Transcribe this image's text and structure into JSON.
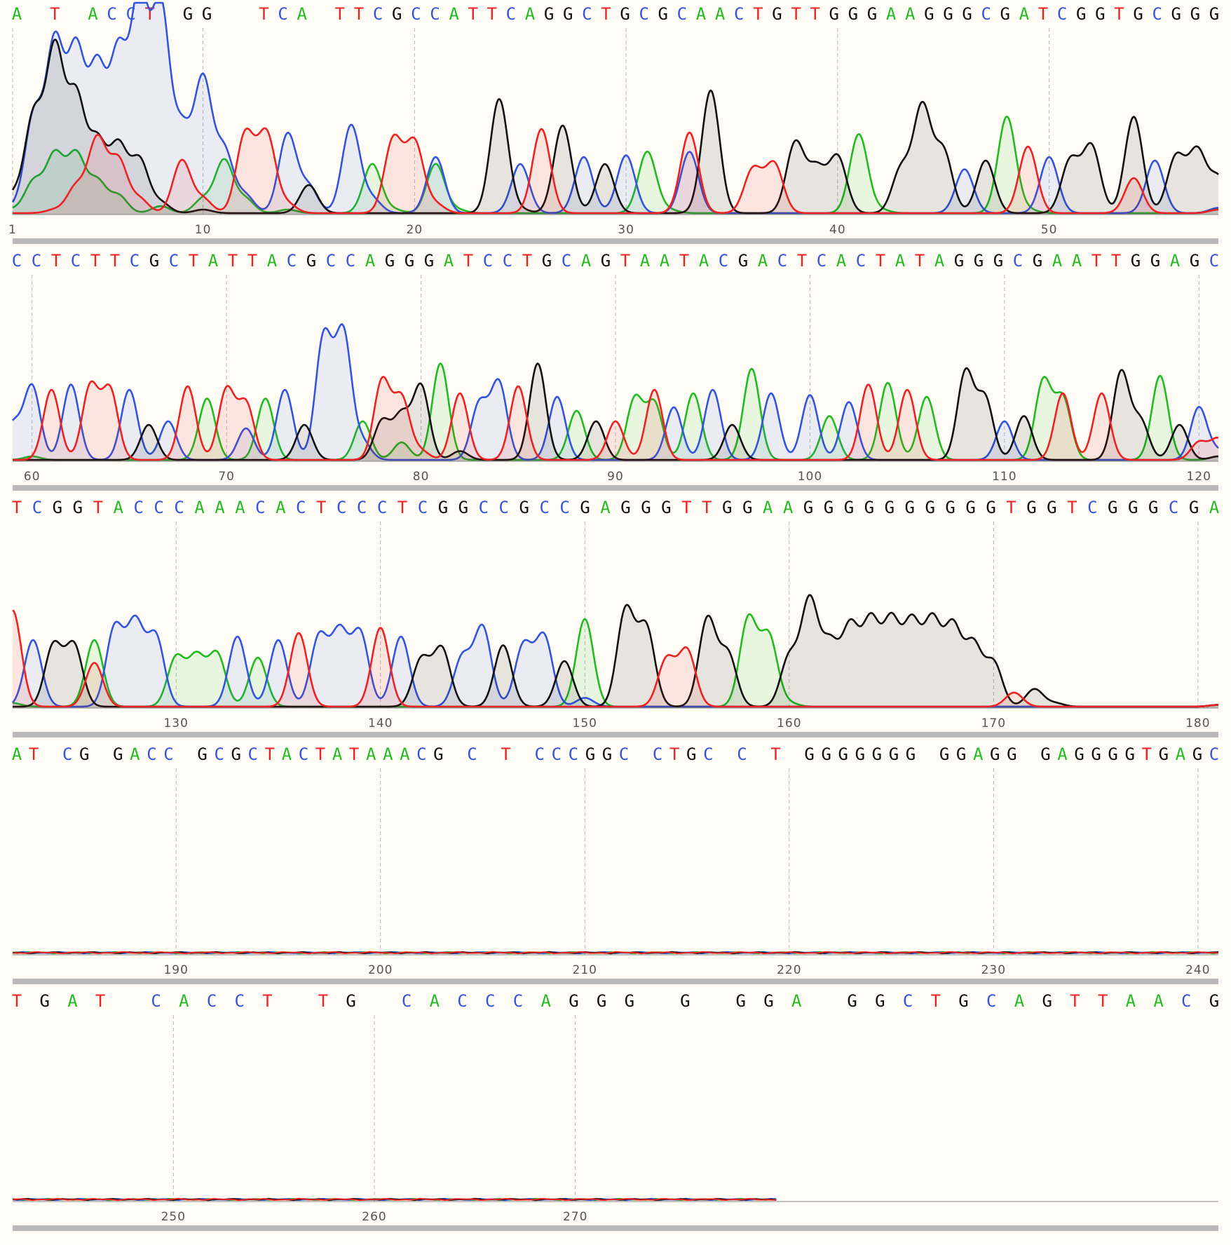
{
  "chart_data": {
    "type": "line",
    "chart_kind": "DNA sequencing chromatogram",
    "grid": true,
    "legend": "none",
    "colors": {
      "A": "#22bb22",
      "C": "#3355dd",
      "G": "#111111",
      "T": "#ee2222"
    },
    "rows": [
      {
        "sequence": "A T ACCT GG  TCA TTCGCCATTCAGGCTGCGCAACTGTTGGGAAGGGCGATCGGTGCGGG",
        "first_pos": 1,
        "last_pos": 58,
        "tick_labels": [
          "1",
          "10",
          "20",
          "30",
          "40",
          "50"
        ],
        "tick_values": [
          1,
          10,
          20,
          30,
          40,
          50
        ],
        "signal": "strong",
        "traces": {
          "A": [
            [
              1,
              2
            ],
            [
              2,
              18
            ],
            [
              3,
              33
            ],
            [
              4,
              33
            ],
            [
              5,
              18
            ],
            [
              6,
              10
            ],
            [
              8,
              4
            ],
            [
              10,
              8
            ],
            [
              11,
              30
            ],
            [
              12,
              8
            ],
            [
              14,
              2
            ],
            [
              18,
              28
            ],
            [
              19,
              2
            ],
            [
              21,
              28
            ],
            [
              22,
              2
            ],
            [
              31,
              35
            ],
            [
              32,
              2
            ],
            [
              41,
              45
            ],
            [
              42,
              2
            ],
            [
              48,
              55
            ],
            [
              49,
              2
            ],
            [
              58,
              2
            ]
          ],
          "C": [
            [
              1,
              3
            ],
            [
              2,
              55
            ],
            [
              3,
              95
            ],
            [
              4,
              90
            ],
            [
              5,
              80
            ],
            [
              6,
              88
            ],
            [
              7,
              120
            ],
            [
              8,
              115
            ],
            [
              9,
              45
            ],
            [
              10,
              75
            ],
            [
              11,
              35
            ],
            [
              12,
              10
            ],
            [
              14,
              45
            ],
            [
              15,
              15
            ],
            [
              17,
              50
            ],
            [
              18,
              8
            ],
            [
              21,
              32
            ],
            [
              25,
              28
            ],
            [
              28,
              32
            ],
            [
              30,
              33
            ],
            [
              33,
              35
            ],
            [
              46,
              25
            ],
            [
              50,
              32
            ],
            [
              55,
              30
            ],
            [
              58,
              3
            ]
          ],
          "G": [
            [
              1,
              10
            ],
            [
              2,
              55
            ],
            [
              3,
              92
            ],
            [
              4,
              65
            ],
            [
              5,
              40
            ],
            [
              6,
              38
            ],
            [
              7,
              30
            ],
            [
              8,
              6
            ],
            [
              10,
              2
            ],
            [
              15,
              16
            ],
            [
              24,
              65
            ],
            [
              25,
              2
            ],
            [
              27,
              50
            ],
            [
              29,
              28
            ],
            [
              34,
              70
            ],
            [
              38,
              40
            ],
            [
              39,
              25
            ],
            [
              40,
              32
            ],
            [
              43,
              25
            ],
            [
              44,
              60
            ],
            [
              45,
              35
            ],
            [
              47,
              30
            ],
            [
              51,
              30
            ],
            [
              52,
              38
            ],
            [
              54,
              55
            ],
            [
              56,
              32
            ],
            [
              57,
              35
            ],
            [
              58,
              20
            ]
          ],
          "T": [
            [
              1,
              0
            ],
            [
              3,
              2
            ],
            [
              4,
              15
            ],
            [
              5,
              42
            ],
            [
              6,
              30
            ],
            [
              7,
              8
            ],
            [
              9,
              30
            ],
            [
              10,
              8
            ],
            [
              12,
              45
            ],
            [
              13,
              45
            ],
            [
              14,
              5
            ],
            [
              19,
              42
            ],
            [
              20,
              40
            ],
            [
              21,
              5
            ],
            [
              26,
              48
            ],
            [
              33,
              46
            ],
            [
              36,
              25
            ],
            [
              37,
              28
            ],
            [
              49,
              38
            ],
            [
              54,
              20
            ],
            [
              58,
              2
            ]
          ]
        }
      },
      {
        "sequence": "CCTCTTCGCTATTACGCCAGGGATCCTGCAGTAATACGACTCACTATAGGGCGAATTGGAGC",
        "first_pos": 59,
        "last_pos": 121,
        "tick_labels": [
          "60",
          "70",
          "80",
          "90",
          "100",
          "110",
          "120"
        ],
        "tick_values": [
          60,
          70,
          80,
          90,
          100,
          110,
          120
        ],
        "signal": "strong",
        "traces": {
          "A": [
            [
              60,
              2
            ],
            [
              69,
              35
            ],
            [
              72,
              35
            ],
            [
              77,
              22
            ],
            [
              79,
              10
            ],
            [
              81,
              55
            ],
            [
              88,
              28
            ],
            [
              91,
              35
            ],
            [
              92,
              32
            ],
            [
              94,
              38
            ],
            [
              97,
              52
            ],
            [
              101,
              25
            ],
            [
              104,
              44
            ],
            [
              106,
              36
            ],
            [
              112,
              45
            ],
            [
              113,
              35
            ],
            [
              118,
              48
            ],
            [
              121,
              2
            ]
          ],
          "C": [
            [
              59,
              20
            ],
            [
              60,
              42
            ],
            [
              62,
              43
            ],
            [
              65,
              40
            ],
            [
              67,
              22
            ],
            [
              71,
              18
            ],
            [
              73,
              40
            ],
            [
              75,
              70
            ],
            [
              76,
              72
            ],
            [
              77,
              10
            ],
            [
              83,
              32
            ],
            [
              84,
              44
            ],
            [
              87,
              36
            ],
            [
              93,
              30
            ],
            [
              95,
              40
            ],
            [
              98,
              38
            ],
            [
              100,
              37
            ],
            [
              102,
              33
            ],
            [
              110,
              22
            ],
            [
              120,
              30
            ],
            [
              121,
              5
            ]
          ],
          "G": [
            [
              66,
              20
            ],
            [
              74,
              20
            ],
            [
              78,
              22
            ],
            [
              79,
              25
            ],
            [
              80,
              42
            ],
            [
              82,
              5
            ],
            [
              86,
              55
            ],
            [
              89,
              22
            ],
            [
              96,
              20
            ],
            [
              108,
              50
            ],
            [
              109,
              35
            ],
            [
              111,
              25
            ],
            [
              116,
              50
            ],
            [
              117,
              22
            ],
            [
              119,
              20
            ],
            [
              121,
              2
            ]
          ],
          "T": [
            [
              61,
              40
            ],
            [
              63,
              42
            ],
            [
              64,
              40
            ],
            [
              68,
              42
            ],
            [
              70,
              40
            ],
            [
              71,
              32
            ],
            [
              78,
              45
            ],
            [
              79,
              35
            ],
            [
              80,
              5
            ],
            [
              82,
              38
            ],
            [
              85,
              42
            ],
            [
              90,
              22
            ],
            [
              92,
              40
            ],
            [
              103,
              43
            ],
            [
              105,
              40
            ],
            [
              113,
              38
            ],
            [
              115,
              38
            ],
            [
              120,
              10
            ],
            [
              121,
              12
            ]
          ]
        }
      },
      {
        "sequence": "TCGGTACCCAAACACTCCCTCGGCCGCCGAGGGTTGGAAGGGGGGGGGGTGGTCGGGCGA",
        "first_pos": 122,
        "last_pos": 181,
        "tick_labels": [
          "130",
          "140",
          "150",
          "160",
          "170",
          "180"
        ],
        "tick_values": [
          130,
          140,
          150,
          160,
          170,
          180
        ],
        "signal": "strong",
        "traces": {
          "A": [
            [
              122,
              2
            ],
            [
              126,
              38
            ],
            [
              130,
              28
            ],
            [
              131,
              28
            ],
            [
              132,
              30
            ],
            [
              134,
              28
            ],
            [
              150,
              50
            ],
            [
              158,
              50
            ],
            [
              159,
              40
            ],
            [
              160,
              2
            ],
            [
              181,
              1
            ]
          ],
          "C": [
            [
              123,
              38
            ],
            [
              127,
              45
            ],
            [
              128,
              47
            ],
            [
              129,
              40
            ],
            [
              133,
              40
            ],
            [
              135,
              38
            ],
            [
              137,
              40
            ],
            [
              138,
              42
            ],
            [
              139,
              42
            ],
            [
              141,
              40
            ],
            [
              144,
              28
            ],
            [
              145,
              45
            ],
            [
              147,
              35
            ],
            [
              148,
              40
            ],
            [
              150,
              5
            ],
            [
              181,
              1
            ]
          ],
          "G": [
            [
              124,
              35
            ],
            [
              125,
              35
            ],
            [
              142,
              27
            ],
            [
              143,
              33
            ],
            [
              146,
              35
            ],
            [
              149,
              26
            ],
            [
              152,
              55
            ],
            [
              153,
              45
            ],
            [
              156,
              50
            ],
            [
              157,
              30
            ],
            [
              160,
              28
            ],
            [
              161,
              60
            ],
            [
              162,
              35
            ],
            [
              163,
              45
            ],
            [
              164,
              48
            ],
            [
              165,
              48
            ],
            [
              166,
              47
            ],
            [
              167,
              48
            ],
            [
              168,
              45
            ],
            [
              169,
              35
            ],
            [
              170,
              25
            ],
            [
              172,
              10
            ],
            [
              173,
              2
            ],
            [
              181,
              1
            ]
          ],
          "T": [
            [
              122,
              55
            ],
            [
              126,
              25
            ],
            [
              136,
              42
            ],
            [
              140,
              45
            ],
            [
              154,
              27
            ],
            [
              155,
              32
            ],
            [
              171,
              8
            ],
            [
              181,
              1
            ]
          ]
        }
      },
      {
        "sequence": "AT CG GACC GCGCTACTATAAACG C T CCCGGC CTGC C T GGGGGGG GGAGG GAGGGGTGAGC",
        "first_pos": 182,
        "last_pos": 241,
        "tick_labels": [
          "190",
          "200",
          "210",
          "220",
          "230",
          "240"
        ],
        "tick_values": [
          190,
          200,
          210,
          220,
          230,
          240
        ],
        "signal": "baseline noise"
      },
      {
        "sequence": "TGAT CACCT TG CACCCAGGG G GGA GGCTGCAGTTAACG",
        "first_pos": 242,
        "last_pos": 302,
        "tick_labels": [
          "250",
          "260",
          "270"
        ],
        "tick_values": [
          250,
          260,
          270
        ],
        "signal": "baseline noise",
        "trace_end": 280
      }
    ]
  }
}
